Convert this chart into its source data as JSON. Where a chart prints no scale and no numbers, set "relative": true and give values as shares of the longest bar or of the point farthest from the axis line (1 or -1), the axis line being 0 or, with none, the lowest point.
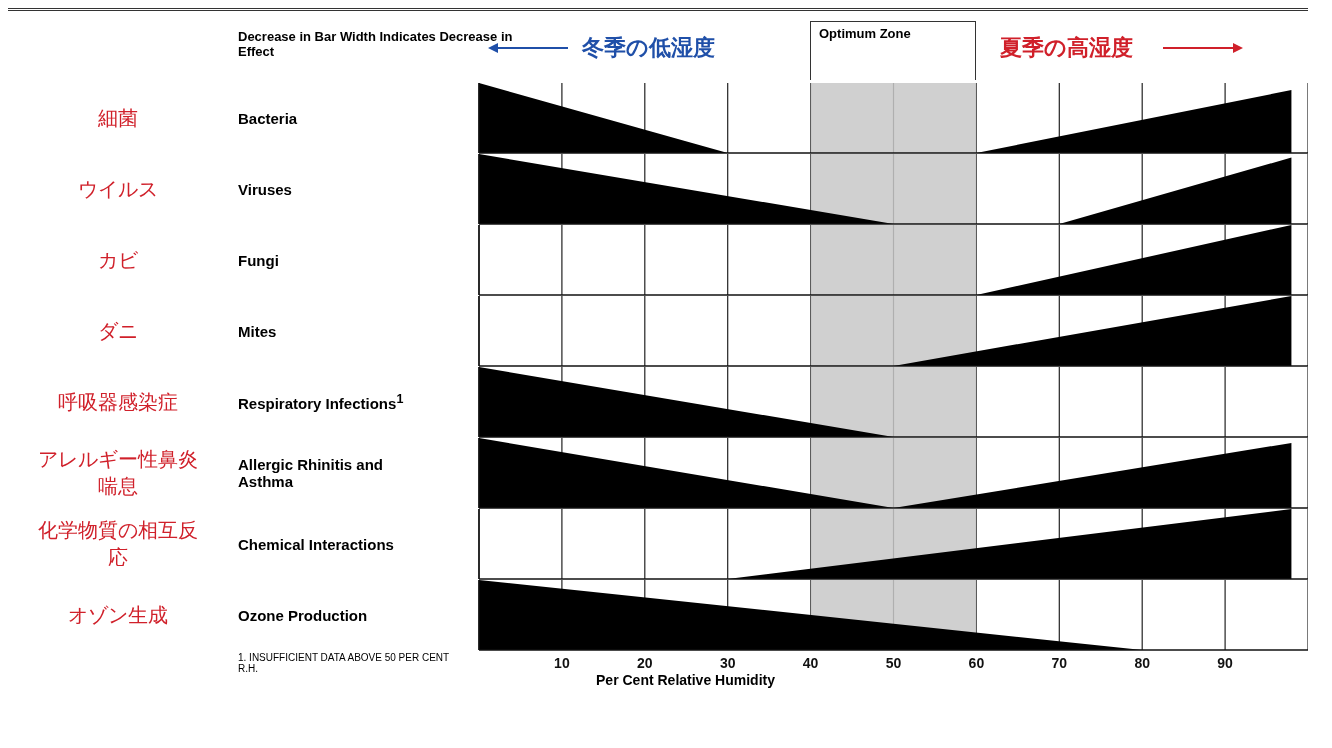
{
  "chart_data": [
    {
      "type": "area",
      "ylabel": "Bacteria",
      "annotations": [
        "細菌",
        "Decrease in Bar Width Indicates Decrease in Effect",
        "冬季の低湿度",
        "夏季の高湿度"
      ],
      "bands": [
        {
          "axis": "x",
          "from": 40,
          "to": 60,
          "label": "Optimum Zone",
          "color": "#c8c8c8"
        }
      ],
      "relative": true,
      "x": [
        0,
        30,
        60,
        98
      ],
      "values": [
        1,
        0,
        0,
        0.9
      ],
      "color": "#000000",
      "xlim": [
        0,
        100
      ],
      "xticks": [
        10,
        20,
        30,
        40,
        50,
        60,
        70,
        80,
        90
      ],
      "grid": "x",
      "tick_labels": false
    },
    {
      "type": "area",
      "ylabel": "Viruses",
      "annotations": [
        "ウイルス"
      ],
      "bands": [
        {
          "axis": "x",
          "from": 40,
          "to": 60,
          "color": "#c8c8c8"
        }
      ],
      "relative": true,
      "x": [
        0,
        50,
        70,
        98
      ],
      "values": [
        1,
        0,
        0,
        0.95
      ],
      "color": "#000000",
      "xlim": [
        0,
        100
      ],
      "xticks": [
        10,
        20,
        30,
        40,
        50,
        60,
        70,
        80,
        90
      ],
      "grid": "x",
      "tick_labels": false
    },
    {
      "type": "area",
      "ylabel": "Fungi",
      "annotations": [
        "カビ"
      ],
      "bands": [
        {
          "axis": "x",
          "from": 40,
          "to": 60,
          "color": "#c8c8c8"
        }
      ],
      "relative": true,
      "x": [
        0,
        60,
        98
      ],
      "values": [
        0,
        0,
        1
      ],
      "color": "#000000",
      "xlim": [
        0,
        100
      ],
      "xticks": [
        10,
        20,
        30,
        40,
        50,
        60,
        70,
        80,
        90
      ],
      "grid": "x",
      "tick_labels": false
    },
    {
      "type": "area",
      "ylabel": "Mites",
      "annotations": [
        "ダニ"
      ],
      "bands": [
        {
          "axis": "x",
          "from": 40,
          "to": 60,
          "color": "#c8c8c8"
        }
      ],
      "relative": true,
      "x": [
        0,
        50,
        98
      ],
      "values": [
        0,
        0,
        1
      ],
      "color": "#000000",
      "xlim": [
        0,
        100
      ],
      "xticks": [
        10,
        20,
        30,
        40,
        50,
        60,
        70,
        80,
        90
      ],
      "grid": "x",
      "tick_labels": false
    },
    {
      "type": "area",
      "ylabel": "Respiratory Infections$^{1}$",
      "annotations": [
        "呼吸器感染症"
      ],
      "bands": [
        {
          "axis": "x",
          "from": 40,
          "to": 60,
          "color": "#c8c8c8"
        }
      ],
      "relative": true,
      "x": [
        0,
        50
      ],
      "values": [
        1,
        0
      ],
      "color": "#000000",
      "xlim": [
        0,
        100
      ],
      "xticks": [
        10,
        20,
        30,
        40,
        50,
        60,
        70,
        80,
        90
      ],
      "grid": "x",
      "tick_labels": false
    },
    {
      "type": "area",
      "ylabel": "Allergic Rhinitis and Asthma",
      "annotations": [
        "アレルギー性鼻炎喘息"
      ],
      "bands": [
        {
          "axis": "x",
          "from": 40,
          "to": 60,
          "color": "#c8c8c8"
        }
      ],
      "relative": true,
      "x": [
        0,
        50,
        98
      ],
      "values": [
        1,
        0,
        0.93
      ],
      "color": "#000000",
      "xlim": [
        0,
        100
      ],
      "xticks": [
        10,
        20,
        30,
        40,
        50,
        60,
        70,
        80,
        90
      ],
      "grid": "x",
      "tick_labels": false
    },
    {
      "type": "area",
      "ylabel": "Chemical Interactions",
      "annotations": [
        "化学物質の相互反応"
      ],
      "bands": [
        {
          "axis": "x",
          "from": 40,
          "to": 60,
          "color": "#c8c8c8"
        }
      ],
      "relative": true,
      "x": [
        0,
        30,
        98
      ],
      "values": [
        0,
        0,
        1
      ],
      "color": "#000000",
      "xlim": [
        0,
        100
      ],
      "xticks": [
        10,
        20,
        30,
        40,
        50,
        60,
        70,
        80,
        90
      ],
      "grid": "x",
      "tick_labels": false
    },
    {
      "type": "area",
      "ylabel": "Ozone Production",
      "xlabel": "Per Cent Relative Humidity",
      "annotations": [
        "オゾン生成",
        "1. INSUFFICIENT DATA ABOVE 50 PER CENT R.H."
      ],
      "bands": [
        {
          "axis": "x",
          "from": 40,
          "to": 60,
          "color": "#c8c8c8"
        }
      ],
      "relative": true,
      "x": [
        0,
        80
      ],
      "values": [
        1,
        0
      ],
      "color": "#000000",
      "xlim": [
        0,
        100
      ],
      "xticks": [
        10,
        20,
        30,
        40,
        50,
        60,
        70,
        80,
        90
      ],
      "grid": "x",
      "tick_labels": "x"
    }
  ]
}
